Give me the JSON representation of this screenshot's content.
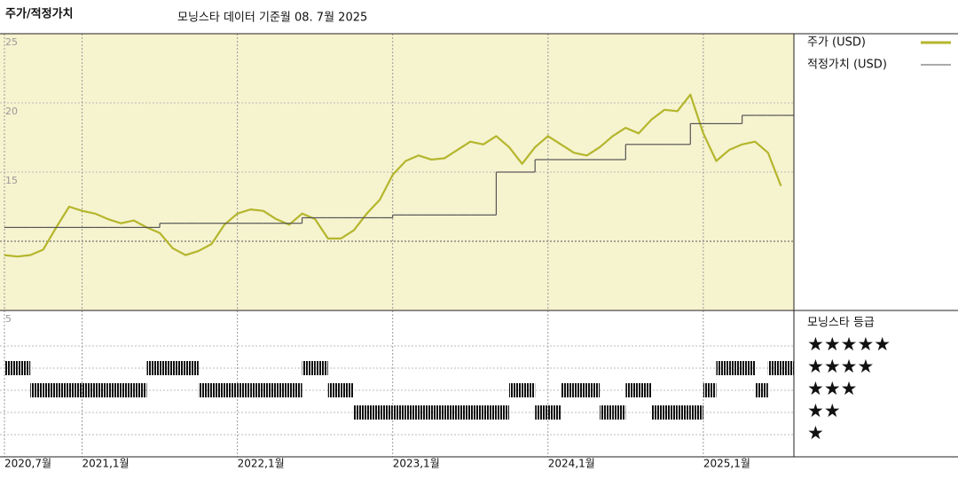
{
  "title": "주가/적정가치",
  "subtitle": "모닝스타 데이터 기준월 08. 7월 2025",
  "chart_data": [
    {
      "type": "line",
      "x": [
        "2020-07",
        "2020-08",
        "2020-09",
        "2020-10",
        "2020-11",
        "2020-12",
        "2021-01",
        "2021-02",
        "2021-03",
        "2021-04",
        "2021-05",
        "2021-06",
        "2021-07",
        "2021-08",
        "2021-09",
        "2021-10",
        "2021-11",
        "2021-12",
        "2022-01",
        "2022-02",
        "2022-03",
        "2022-04",
        "2022-05",
        "2022-06",
        "2022-07",
        "2022-08",
        "2022-09",
        "2022-10",
        "2022-11",
        "2022-12",
        "2023-01",
        "2023-02",
        "2023-03",
        "2023-04",
        "2023-05",
        "2023-06",
        "2023-07",
        "2023-08",
        "2023-09",
        "2023-10",
        "2023-11",
        "2023-12",
        "2024-01",
        "2024-02",
        "2024-03",
        "2024-04",
        "2024-05",
        "2024-06",
        "2024-07",
        "2024-08",
        "2024-09",
        "2024-10",
        "2024-11",
        "2024-12",
        "2025-01",
        "2025-02",
        "2025-03",
        "2025-04",
        "2025-05",
        "2025-06",
        "2025-07"
      ],
      "series": [
        {
          "name": "주가 (USD)",
          "color": "#b4b62c",
          "style": "line",
          "values": [
            9.0,
            8.9,
            9.0,
            9.4,
            11.0,
            12.5,
            12.2,
            12.0,
            11.6,
            11.3,
            11.5,
            11.0,
            10.6,
            9.5,
            9.0,
            9.3,
            9.8,
            11.2,
            12.0,
            12.3,
            12.2,
            11.6,
            11.2,
            12.0,
            11.6,
            10.2,
            10.2,
            10.8,
            12.0,
            13.0,
            14.8,
            15.8,
            16.2,
            15.9,
            16.0,
            16.6,
            17.2,
            17.0,
            17.6,
            16.8,
            15.6,
            16.8,
            17.6,
            17.0,
            16.4,
            16.2,
            16.8,
            17.6,
            18.2,
            17.8,
            18.8,
            19.5,
            19.4,
            20.6,
            17.8,
            15.8,
            16.6,
            17.0,
            17.2,
            16.4,
            14.0
          ]
        },
        {
          "name": "적정가치 (USD)",
          "color": "#555555",
          "style": "step",
          "values": [
            11.0,
            11.0,
            11.0,
            11.0,
            11.0,
            11.0,
            11.0,
            11.0,
            11.0,
            11.0,
            11.0,
            11.0,
            11.3,
            11.3,
            11.3,
            11.3,
            11.3,
            11.3,
            11.3,
            11.3,
            11.3,
            11.3,
            11.3,
            11.7,
            11.7,
            11.7,
            11.7,
            11.7,
            11.7,
            11.7,
            11.9,
            11.9,
            11.9,
            11.9,
            11.9,
            11.9,
            11.9,
            11.9,
            15.0,
            15.0,
            15.0,
            15.9,
            15.9,
            15.9,
            15.9,
            15.9,
            15.9,
            15.9,
            17.0,
            17.0,
            17.0,
            17.0,
            17.0,
            18.5,
            18.5,
            18.5,
            18.5,
            19.1,
            19.1,
            19.1,
            19.1
          ]
        }
      ],
      "xlim": [
        "2020-07",
        "2025-08"
      ],
      "xticks": [
        {
          "value": "2020-07",
          "label": "2020,7월"
        },
        {
          "value": "2021-01",
          "label": "2021,1월"
        },
        {
          "value": "2022-01",
          "label": "2022,1월"
        },
        {
          "value": "2023-01",
          "label": "2023,1월"
        },
        {
          "value": "2024-01",
          "label": "2024,1월"
        },
        {
          "value": "2025-01",
          "label": "2025,1월"
        }
      ],
      "ylim": [
        5,
        25
      ],
      "yticks": [
        5,
        15,
        20,
        25
      ],
      "ygrid": [
        10,
        15,
        20
      ]
    },
    {
      "type": "rating",
      "title": "모닝스타 등급",
      "x": [
        "2020-07",
        "2020-08",
        "2020-09",
        "2020-10",
        "2020-11",
        "2020-12",
        "2021-01",
        "2021-02",
        "2021-03",
        "2021-04",
        "2021-05",
        "2021-06",
        "2021-07",
        "2021-08",
        "2021-09",
        "2021-10",
        "2021-11",
        "2021-12",
        "2022-01",
        "2022-02",
        "2022-03",
        "2022-04",
        "2022-05",
        "2022-06",
        "2022-07",
        "2022-08",
        "2022-09",
        "2022-10",
        "2022-11",
        "2022-12",
        "2023-01",
        "2023-02",
        "2023-03",
        "2023-04",
        "2023-05",
        "2023-06",
        "2023-07",
        "2023-08",
        "2023-09",
        "2023-10",
        "2023-11",
        "2023-12",
        "2024-01",
        "2024-02",
        "2024-03",
        "2024-04",
        "2024-05",
        "2024-06",
        "2024-07",
        "2024-08",
        "2024-09",
        "2024-10",
        "2024-11",
        "2024-12",
        "2025-01",
        "2025-02",
        "2025-03",
        "2025-04",
        "2025-05",
        "2025-06",
        "2025-07"
      ],
      "values": [
        4,
        4,
        3,
        3,
        3,
        3,
        3,
        3,
        3,
        3,
        3,
        4,
        4,
        4,
        4,
        3,
        3,
        3,
        3,
        3,
        3,
        3,
        3,
        4,
        4,
        3,
        3,
        2,
        2,
        2,
        2,
        2,
        2,
        2,
        2,
        2,
        2,
        2,
        2,
        3,
        3,
        2,
        2,
        3,
        3,
        3,
        2,
        2,
        3,
        3,
        2,
        2,
        2,
        2,
        3,
        4,
        4,
        4,
        3,
        4,
        4
      ],
      "xlim": [
        "2020-07",
        "2025-08"
      ],
      "ylim": [
        0,
        6.6
      ],
      "yticks": [
        {
          "value": 5,
          "label": "★★★★★"
        },
        {
          "value": 4,
          "label": "★★★★"
        },
        {
          "value": 3,
          "label": "★★★"
        },
        {
          "value": 2,
          "label": "★★"
        },
        {
          "value": 1,
          "label": "★"
        }
      ]
    }
  ]
}
